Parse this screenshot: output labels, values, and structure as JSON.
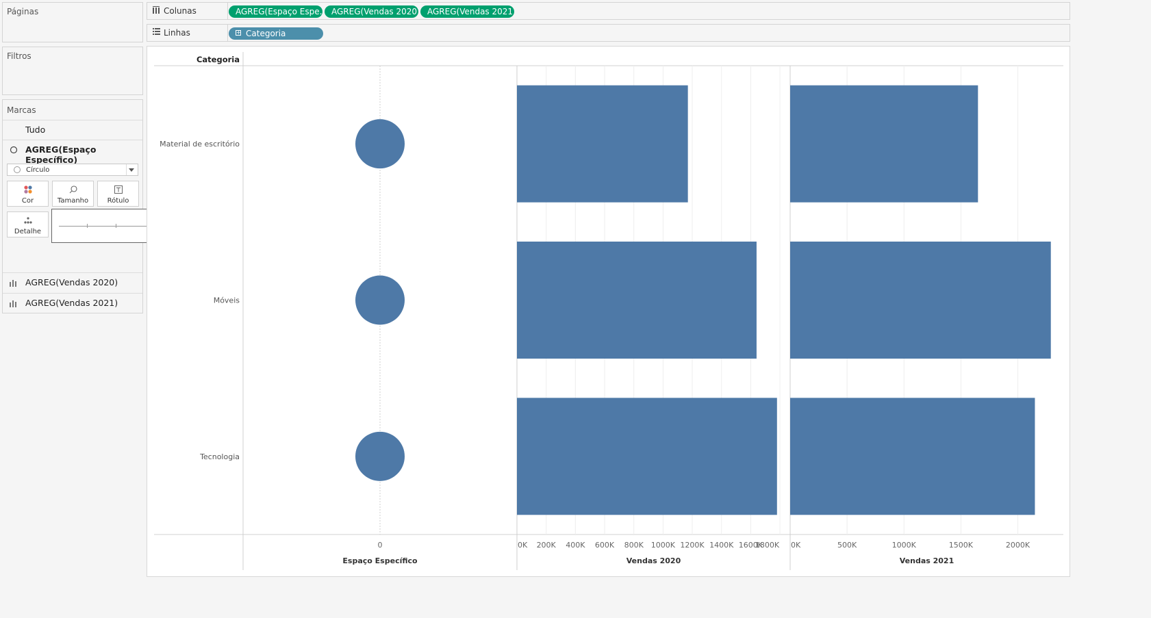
{
  "left_panel": {
    "pages_title": "Páginas",
    "filters_title": "Filtros",
    "marks": {
      "title": "Marcas",
      "all_label": "Tudo",
      "active_card": "AGREG(Espaço Específico)",
      "mark_type": "Círculo",
      "buttons": {
        "color": "Cor",
        "size": "Tamanho",
        "label": "Rótulo",
        "detail": "Detalhe"
      },
      "other_cards": [
        "AGREG(Vendas 2020)",
        "AGREG(Vendas 2021)"
      ]
    }
  },
  "shelves": {
    "columns_label": "Colunas",
    "rows_label": "Linhas",
    "column_pills": [
      "AGREG(Espaço Espe..",
      "AGREG(Vendas 2020)",
      "AGREG(Vendas 2021)"
    ],
    "row_pills": [
      "Categoria"
    ]
  },
  "colors": {
    "mark": "#4e79a7",
    "pill_green": "#00a06e",
    "pill_blue": "#4c8fab"
  },
  "chart_data": {
    "type": "bar",
    "row_header": "Categoria",
    "categories": [
      "Material de escritório",
      "Móveis",
      "Tecnologia"
    ],
    "panes": [
      {
        "name": "Espaço Específico",
        "mark": "circle",
        "values": [
          0,
          0,
          0
        ],
        "ticks": [
          0
        ],
        "tick_labels": [
          "0"
        ],
        "xlim": [
          -1,
          1
        ]
      },
      {
        "name": "Vendas 2020",
        "mark": "bar",
        "values": [
          1170000,
          1640000,
          1780000
        ],
        "ticks": [
          0,
          200000,
          400000,
          600000,
          800000,
          1000000,
          1200000,
          1400000,
          1600000,
          1800000
        ],
        "tick_labels": [
          "0K",
          "200K",
          "400K",
          "600K",
          "800K",
          "1000K",
          "1200K",
          "1400K",
          "1600K",
          "1800K"
        ],
        "xlim": [
          0,
          1870000
        ]
      },
      {
        "name": "Vendas 2021",
        "mark": "bar",
        "values": [
          1650000,
          2290000,
          2150000
        ],
        "ticks": [
          0,
          500000,
          1000000,
          1500000,
          2000000
        ],
        "tick_labels": [
          "0K",
          "500K",
          "1000K",
          "1500K",
          "2000K"
        ],
        "xlim": [
          0,
          2400000
        ]
      }
    ],
    "grid": true
  }
}
